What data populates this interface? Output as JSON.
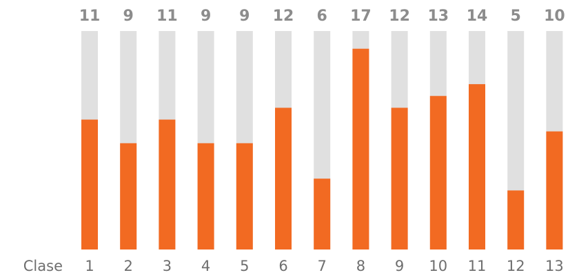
{
  "chart_data": {
    "type": "bar",
    "xlabel": "Clase",
    "categories": [
      "1",
      "2",
      "3",
      "4",
      "5",
      "6",
      "7",
      "8",
      "9",
      "10",
      "11",
      "12",
      "13"
    ],
    "values": [
      11,
      9,
      11,
      9,
      9,
      12,
      6,
      17,
      12,
      13,
      14,
      5,
      10
    ],
    "ylim": [
      0,
      18.5
    ],
    "grid": false,
    "legend": "none",
    "colors": {
      "bar_fill": "#f26a22",
      "bar_track": "#e0e0e0",
      "value_label": "#8c8c8c",
      "tick_label": "#6e6e6e"
    }
  }
}
